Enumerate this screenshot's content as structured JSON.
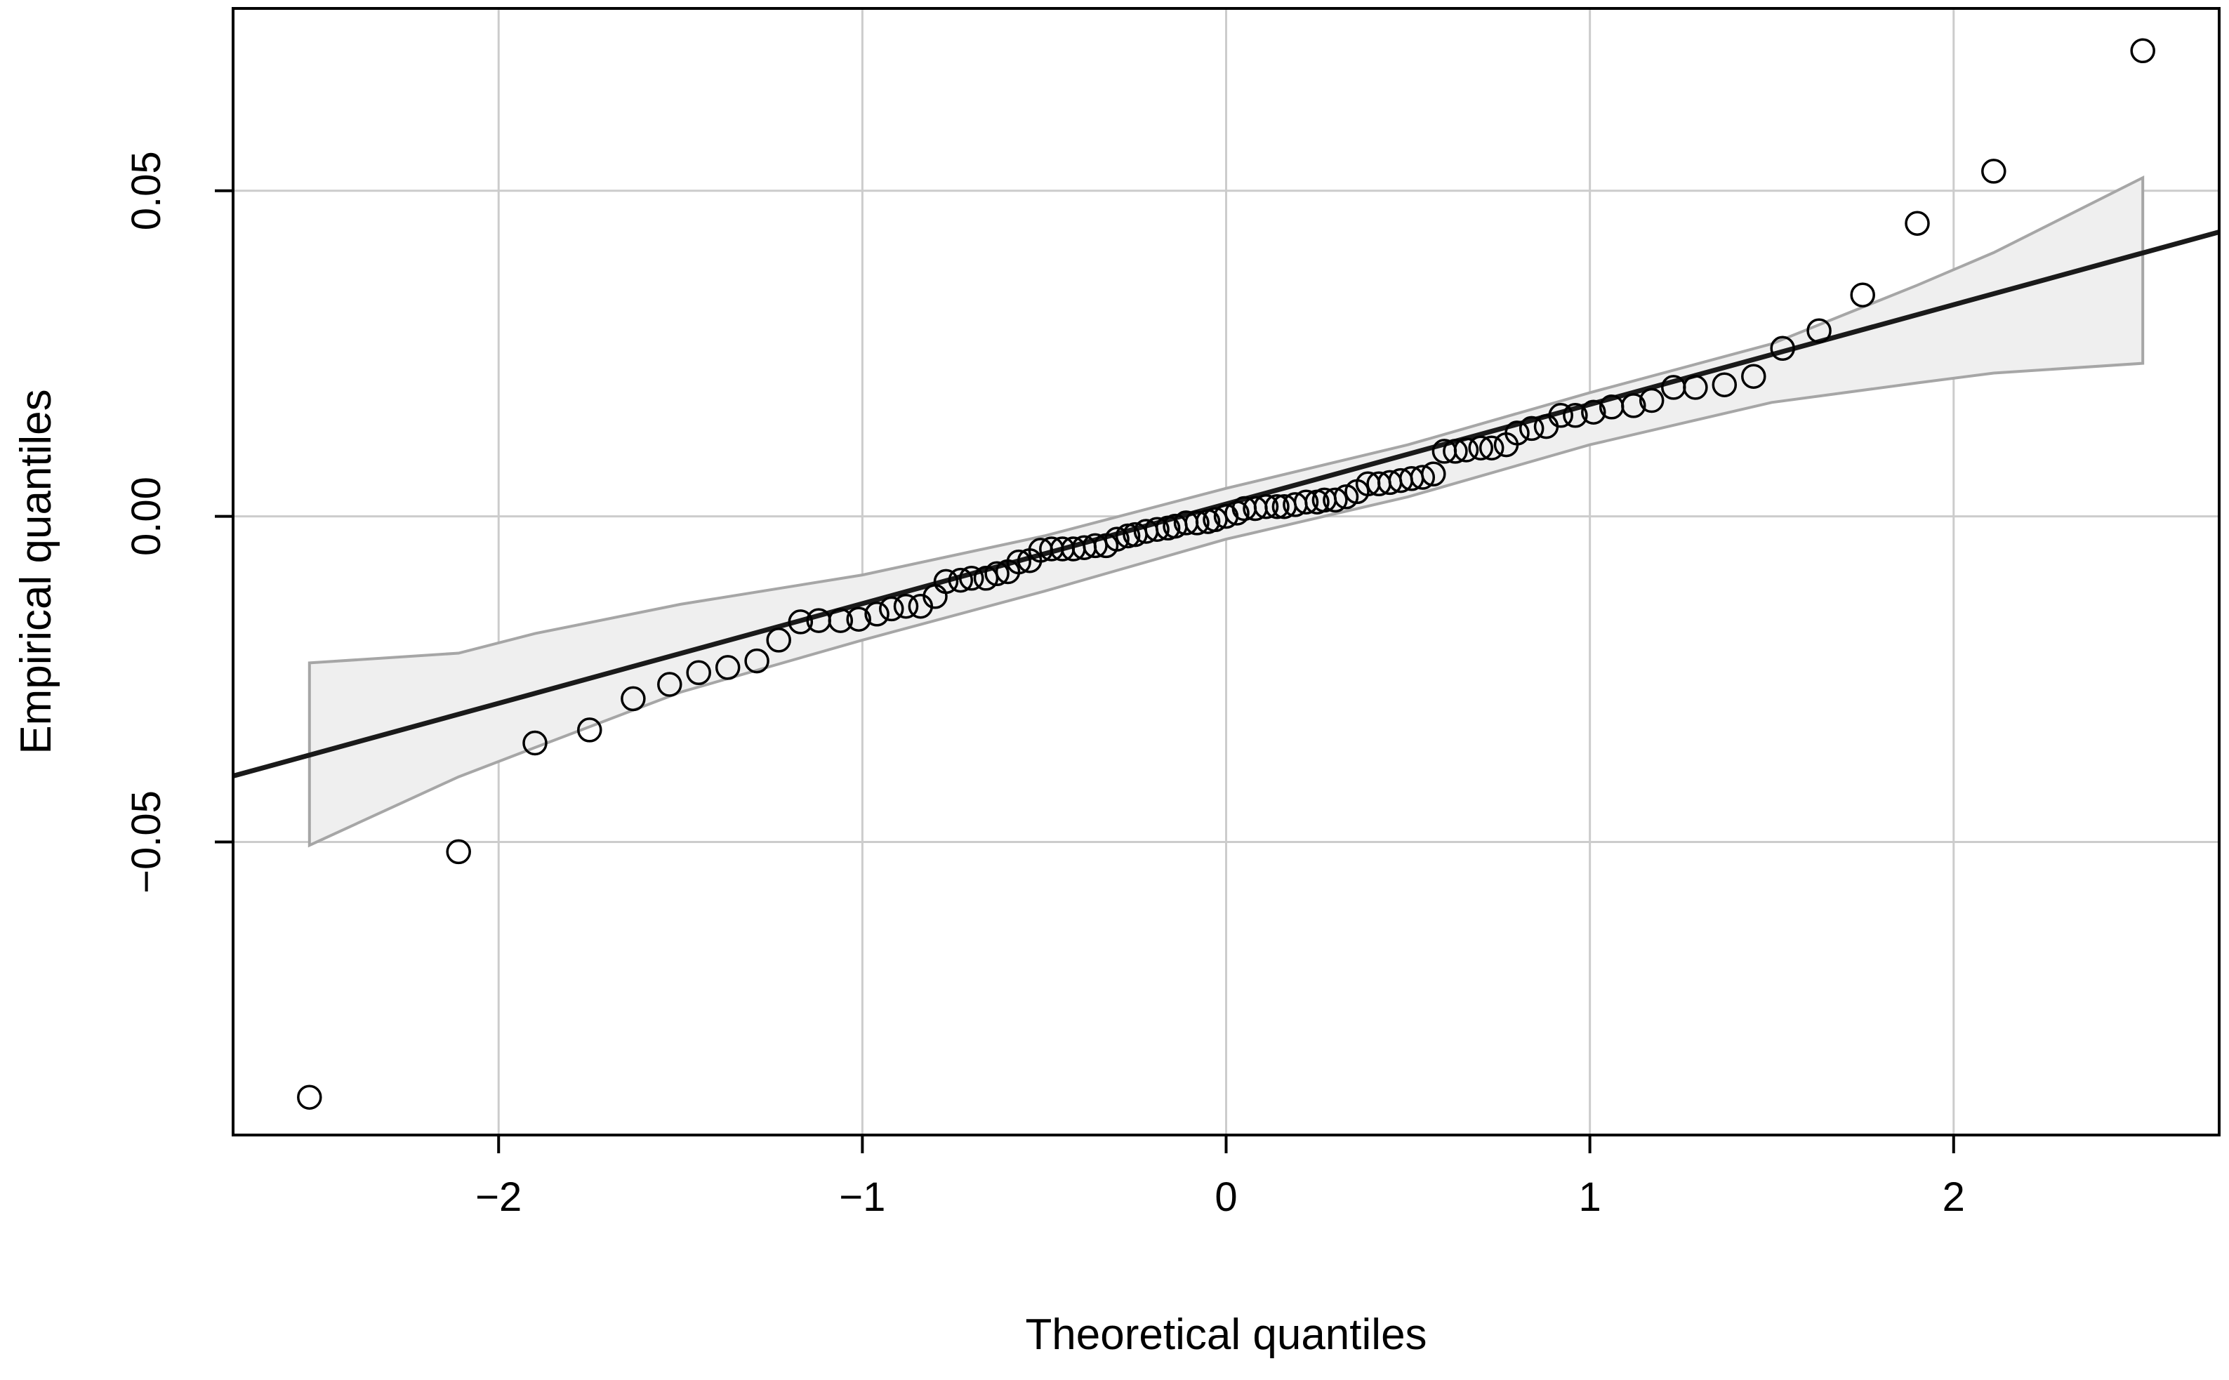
{
  "chart_data": {
    "type": "scatter",
    "title": "",
    "xlabel": "Theoretical quantiles",
    "ylabel": "Empirical quantiles",
    "xlim": [
      -2.73,
      2.73
    ],
    "ylim": [
      -0.095,
      0.078
    ],
    "x_ticks": [
      -2,
      -1,
      0,
      1,
      2
    ],
    "x_tick_labels": [
      "−2",
      "−1",
      "0",
      "1",
      "2"
    ],
    "y_ticks": [
      -0.05,
      0.0,
      0.05
    ],
    "y_tick_labels": [
      "−0.05",
      "0.00",
      "0.05"
    ],
    "grid": true,
    "reference_line": {
      "slope": 0.0153,
      "intercept": 0.0019
    },
    "confidence_band": {
      "x": [
        -2.52,
        -2.11,
        -1.9,
        -1.5,
        -1.0,
        -0.5,
        0.0,
        0.5,
        1.0,
        1.5,
        1.9,
        2.11,
        2.52
      ],
      "upper": [
        -0.0225,
        -0.021,
        -0.018,
        -0.0135,
        -0.009,
        -0.003,
        0.0043,
        0.011,
        0.019,
        0.0265,
        0.0355,
        0.0405,
        0.052
      ],
      "lower": [
        -0.0505,
        -0.04,
        -0.0355,
        -0.027,
        -0.019,
        -0.0115,
        -0.0035,
        0.003,
        0.011,
        0.0175,
        0.0205,
        0.022,
        0.0235
      ]
    },
    "points": {
      "x": [
        -2.52,
        -2.11,
        -1.9,
        -1.75,
        -1.63,
        -1.53,
        -1.45,
        -1.37,
        -1.29,
        -1.23,
        -1.17,
        -1.12,
        -1.06,
        -1.01,
        -0.96,
        -0.92,
        -0.88,
        -0.84,
        -0.8,
        -0.77,
        -0.73,
        -0.7,
        -0.66,
        -0.63,
        -0.6,
        -0.57,
        -0.54,
        -0.51,
        -0.48,
        -0.45,
        -0.42,
        -0.39,
        -0.36,
        -0.33,
        -0.3,
        -0.27,
        -0.25,
        -0.22,
        -0.19,
        -0.16,
        -0.14,
        -0.11,
        -0.08,
        -0.05,
        -0.03,
        0.0,
        0.03,
        0.05,
        0.08,
        0.11,
        0.14,
        0.16,
        0.19,
        0.22,
        0.25,
        0.27,
        0.3,
        0.33,
        0.36,
        0.39,
        0.42,
        0.45,
        0.48,
        0.51,
        0.54,
        0.57,
        0.6,
        0.63,
        0.66,
        0.7,
        0.73,
        0.77,
        0.8,
        0.84,
        0.88,
        0.92,
        0.96,
        1.01,
        1.06,
        1.12,
        1.17,
        1.23,
        1.29,
        1.37,
        1.45,
        1.53,
        1.63,
        1.75,
        1.9,
        2.11,
        2.52
      ],
      "y": [
        -0.0892,
        -0.0515,
        -0.0348,
        -0.0328,
        -0.028,
        -0.0258,
        -0.024,
        -0.0232,
        -0.0222,
        -0.019,
        -0.0162,
        -0.016,
        -0.016,
        -0.0158,
        -0.015,
        -0.0142,
        -0.0138,
        -0.0138,
        -0.0123,
        -0.01,
        -0.0098,
        -0.0095,
        -0.0095,
        -0.0088,
        -0.0085,
        -0.007,
        -0.0068,
        -0.0052,
        -0.005,
        -0.005,
        -0.005,
        -0.0048,
        -0.0045,
        -0.0045,
        -0.0035,
        -0.003,
        -0.0028,
        -0.0023,
        -0.002,
        -0.0018,
        -0.0015,
        -0.001,
        -0.001,
        -0.0008,
        -0.0005,
        0.0,
        0.0005,
        0.0012,
        0.0012,
        0.0015,
        0.0015,
        0.0015,
        0.0018,
        0.0022,
        0.0022,
        0.0025,
        0.0025,
        0.003,
        0.0038,
        0.005,
        0.005,
        0.0052,
        0.0055,
        0.0058,
        0.006,
        0.0065,
        0.01,
        0.01,
        0.0102,
        0.0105,
        0.0105,
        0.011,
        0.0128,
        0.0135,
        0.0138,
        0.0155,
        0.0155,
        0.016,
        0.0168,
        0.017,
        0.0178,
        0.0198,
        0.0198,
        0.0202,
        0.0215,
        0.0258,
        0.0285,
        0.034,
        0.045,
        0.053,
        0.0715
      ]
    }
  }
}
